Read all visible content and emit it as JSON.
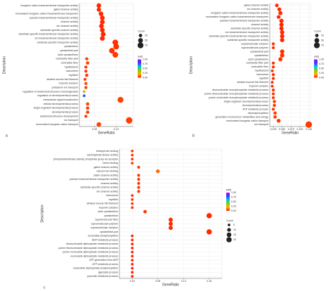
{
  "chart_data": [
    {
      "type": "dotplot",
      "panel": "a",
      "xlabel": "GeneRatio",
      "ylabel": "Description",
      "categories": [
        "inorganic cation transmembrane transporter activity",
        "gated channel activity",
        "monovalent inorganic cation transmembrane transporter",
        "passive transmembrane transporter activity",
        "channel activity",
        "ion channel activity",
        "substrate-specific channel activity",
        "substrate-specific transmembrane transporter activity",
        "ion transmembrane transporter activity",
        "substrate-specific transporter activity",
        "cytoskeleton",
        "cytoskeletal part",
        "actin cytoskeleton",
        "contractile fiber part",
        "contractile fiber",
        "myofilament",
        "sarcomere",
        "myofibril",
        "striated muscle thin filament",
        "troponin complex",
        "potassium ion transport",
        "regulation of anatomical structure morphogenesis",
        "regulation of developmental process",
        "intracellular signal transduction",
        "cellular developmental process",
        "single-organism developmental process",
        "developmental process",
        "anatomical structure development",
        "ion transport",
        "monovalent inorganic cation transport"
      ],
      "values": [
        0.06,
        0.06,
        0.065,
        0.068,
        0.068,
        0.066,
        0.068,
        0.07,
        0.068,
        0.098,
        0.1,
        0.09,
        0.098,
        0.032,
        0.034,
        0.03,
        0.03,
        0.032,
        0.028,
        0.03,
        0.03,
        0.026,
        0.026,
        0.11,
        0.034,
        0.034,
        0.034,
        0.03,
        0.13,
        0.06
      ],
      "counts": [
        45,
        40,
        45,
        48,
        48,
        46,
        48,
        50,
        48,
        70,
        72,
        65,
        70,
        22,
        24,
        20,
        20,
        22,
        18,
        20,
        20,
        15,
        16,
        75,
        24,
        24,
        24,
        20,
        90,
        44
      ],
      "padj": [
        0.02,
        0.02,
        0.02,
        0.02,
        0.02,
        0.02,
        0.02,
        0.02,
        0.02,
        0.03,
        0.03,
        0.03,
        0.04,
        0.05,
        0.05,
        0.04,
        0.04,
        0.04,
        0.04,
        0.05,
        0.05,
        0.3,
        0.75,
        0.05,
        0.06,
        0.05,
        0.05,
        0.05,
        0.05,
        0.05
      ],
      "xlim": [
        0.015,
        0.14
      ],
      "xticks": [
        0.05,
        {
          "value": 0.1,
          "label": "0.10"
        }
      ],
      "size_title": "Count",
      "size_legend": [
        25,
        50,
        75
      ],
      "color_title": "padj",
      "color_ticks": [
        {
          "value": 1,
          "label": "1.00"
        },
        0.75,
        {
          "value": 0.5,
          "label": "0.50"
        },
        0.25,
        {
          "value": 0,
          "label": "0.00"
        }
      ],
      "colormap": [
        "#ff1a00",
        "#ffb000",
        "#7fd000",
        "#00c8e0",
        "#3040ff",
        "#b000ff"
      ],
      "grid": true
    },
    {
      "type": "dotplot",
      "panel": "b",
      "xlabel": "GeneRatio",
      "ylabel": "Description",
      "categories": [
        "gated channel activity",
        "ion channel activity",
        "inorganic cation transmembrane transporter activity",
        "monovalent inorganic cation transmembrane transporter",
        "passive transmembrane transporter activity",
        "channel activity",
        "substrate-specific channel activity",
        "ion transmembrane transporter activity",
        "substrate-specific transmembrane transporter activity",
        "substrate-specific transporter activity",
        "supramolecular complex",
        "supramolecular polymer",
        "cytoskeletal part",
        "cytoskeleton",
        "actin cytoskeleton",
        "contractile fiber part",
        "contractile fiber",
        "myofilament",
        "sarcomere",
        "myofibril",
        "striated muscle thin filament",
        "troponin complex",
        "ribonucleoside monophosphate metabolic process",
        "purine ribonucleoside monophosphate metabolic process",
        "purine nucleoside monophosphate metabolic process",
        "single-organism developmental process",
        "developmental process",
        "ATP metabolic process",
        "dephosphorylation",
        "generation of precursor metabolites and energy",
        "monovalent inorganic cation transport",
        "ion transport"
      ],
      "values": [
        0.035,
        0.042,
        0.045,
        0.04,
        0.048,
        0.048,
        0.048,
        0.05,
        0.05,
        0.05,
        0.025,
        0.025,
        0.05,
        0.05,
        0.045,
        0.025,
        0.025,
        0.022,
        0.025,
        0.025,
        0.022,
        0.022,
        0.025,
        0.025,
        0.025,
        0.028,
        0.028,
        0.025,
        0.03,
        0.03,
        0.04,
        0.125
      ],
      "counts": [
        28,
        32,
        35,
        30,
        38,
        38,
        38,
        40,
        40,
        40,
        20,
        20,
        40,
        40,
        35,
        20,
        20,
        16,
        20,
        20,
        16,
        16,
        20,
        20,
        20,
        22,
        22,
        20,
        24,
        24,
        32,
        90
      ],
      "padj": [
        0.02,
        0.02,
        0.02,
        0.02,
        0.02,
        0.02,
        0.02,
        0.02,
        0.02,
        0.02,
        0.03,
        0.03,
        0.03,
        0.03,
        0.03,
        0.03,
        0.03,
        0.03,
        0.03,
        0.03,
        0.03,
        0.03,
        0.04,
        0.04,
        0.04,
        0.04,
        0.04,
        0.04,
        0.04,
        0.04,
        0.04,
        0.04
      ],
      "xlim": [
        0.015,
        0.13
      ],
      "xticks": [
        0.025,
        {
          "value": 0.05,
          "label": "0.050"
        },
        0.075,
        {
          "value": 0.1,
          "label": "0.100"
        },
        0.125
      ],
      "size_title": "Count",
      "size_legend": [
        25,
        50,
        75
      ],
      "color_title": "padj",
      "color_ticks": [
        {
          "value": 1,
          "label": "1.00"
        },
        0.75,
        {
          "value": 0.5,
          "label": "0.50"
        },
        0.25,
        {
          "value": 0,
          "label": "0.00"
        }
      ],
      "colormap": [
        "#ff1a00",
        "#ffb000",
        "#7fd000",
        "#00c8e0",
        "#3040ff",
        "#b000ff"
      ],
      "grid": true
    },
    {
      "type": "dotplot",
      "panel": "c",
      "xlabel": "GeneRatio",
      "ylabel": "Description",
      "categories": [
        "tetrapyrrole binding",
        "carbohydrate kinase activity",
        "phosphotransferase activity, phosphate group as acceptor",
        "heme binding",
        "gated channel activity",
        "calcium ion binding",
        "cation channel activity",
        "passive transmembrane transporter activity",
        "channel activity",
        "substrate-specific channel activity",
        "ion channel activity",
        "sarcomere",
        "myofibril",
        "striated muscle thin filament",
        "troponin complex",
        "actin cytoskeleton",
        "cytoskeleton",
        "supramolecular fiber",
        "supramolecular polymer",
        "supramolecular complex",
        "cytoskeletal part",
        "nucleotide phosphorylation",
        "ADP metabolic process",
        "ribonucleoside diphosphate metabolic process",
        "purine ribonucleoside diphosphate metabolic process",
        "purine nucleoside diphosphate metabolic process",
        "nucleoside diphosphate metabolic process",
        "ATP generation from ADP",
        "ATP metabolic process",
        "nucleoside diphosphate phosphorylation",
        "glycolytic process",
        "pyruvate metabolic process"
      ],
      "values": [
        0.04,
        0.04,
        0.04,
        0.04,
        0.05,
        0.08,
        0.05,
        0.05,
        0.05,
        0.05,
        0.05,
        0.04,
        0.04,
        0.04,
        0.04,
        0.06,
        0.16,
        0.1,
        0.1,
        0.1,
        0.16,
        0.04,
        0.04,
        0.04,
        0.04,
        0.04,
        0.04,
        0.04,
        0.04,
        0.04,
        0.04,
        0.04
      ],
      "counts": [
        5,
        5,
        5,
        5,
        6,
        10,
        6,
        6,
        6,
        6,
        6,
        5,
        5,
        5,
        5,
        8,
        20,
        12,
        12,
        12,
        20,
        5,
        5,
        5,
        5,
        5,
        5,
        5,
        5,
        5,
        5,
        5
      ],
      "padj": [
        0.04,
        0.04,
        0.04,
        0.04,
        0.04,
        0.1,
        0.04,
        0.04,
        0.04,
        0.04,
        0.04,
        0.03,
        0.03,
        0.03,
        0.03,
        0.03,
        0.02,
        0.02,
        0.02,
        0.02,
        0.02,
        0.01,
        0.01,
        0.01,
        0.01,
        0.01,
        0.01,
        0.01,
        0.01,
        0.01,
        0.01,
        0.01
      ],
      "xlim": [
        0.02,
        0.18
      ],
      "xticks": [
        0.04,
        0.08,
        0.12,
        0.16
      ],
      "size_title": "Count",
      "size_legend": [
        5,
        10,
        15,
        20
      ],
      "color_title": "padj",
      "color_ticks": [
        {
          "value": 1,
          "label": "1.00"
        },
        0.75,
        {
          "value": 0.5,
          "label": "0.50"
        },
        0.25,
        {
          "value": 0,
          "label": "0.00"
        }
      ],
      "colormap": [
        "#ff1a00",
        "#ffb000",
        "#7fd000",
        "#00c8e0",
        "#3040ff",
        "#b000ff"
      ],
      "grid": true
    }
  ]
}
